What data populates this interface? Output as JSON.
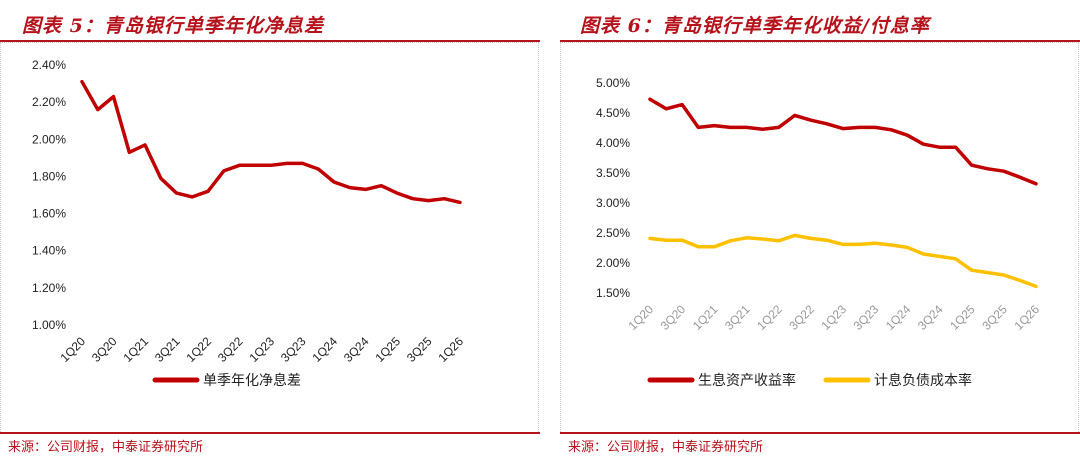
{
  "colors": {
    "brand_red": "#b5121b",
    "series_red": "#c00000",
    "series_yellow": "#ffc000"
  },
  "panel_left": {
    "title": "图表 5：青岛银行单季年化净息差",
    "source": "来源：公司财报，中泰证券研究所"
  },
  "panel_right": {
    "title": "图表 6：青岛银行单季年化收益/付息率",
    "source": "来源：公司财报，中泰证券研究所"
  },
  "chart_data": [
    {
      "type": "line",
      "y_format": "percent",
      "categories": [
        "1Q20",
        "2Q20",
        "3Q20",
        "4Q20",
        "1Q21",
        "2Q21",
        "3Q21",
        "4Q21",
        "1Q22",
        "2Q22",
        "3Q22",
        "4Q22",
        "1Q23",
        "2Q23",
        "3Q23",
        "4Q23",
        "1Q24",
        "2Q24",
        "3Q24",
        "4Q24",
        "1Q25",
        "2Q25",
        "3Q25",
        "4Q25",
        "1Q26"
      ],
      "x_tick_labels": [
        "1Q20",
        "3Q20",
        "1Q21",
        "3Q21",
        "1Q22",
        "3Q22",
        "1Q23",
        "3Q23",
        "1Q24",
        "3Q24",
        "1Q25",
        "3Q25",
        "1Q26"
      ],
      "y_ticks": [
        "2.40%",
        "2.20%",
        "2.00%",
        "1.80%",
        "1.60%",
        "1.40%",
        "1.20%",
        "1.00%"
      ],
      "ylim": [
        1.0,
        2.4
      ],
      "legend_position": "bottom",
      "series": [
        {
          "name": "单季年化净息差",
          "color": "#c00000",
          "values": [
            2.31,
            2.16,
            2.23,
            1.93,
            1.97,
            1.79,
            1.71,
            1.69,
            1.72,
            1.83,
            1.86,
            1.86,
            1.86,
            1.87,
            1.87,
            1.84,
            1.77,
            1.74,
            1.73,
            1.75,
            1.71,
            1.68,
            1.67,
            1.68,
            1.66
          ]
        }
      ]
    },
    {
      "type": "line",
      "y_format": "percent",
      "categories": [
        "1Q20",
        "2Q20",
        "3Q20",
        "4Q20",
        "1Q21",
        "2Q21",
        "3Q21",
        "4Q21",
        "1Q22",
        "2Q22",
        "3Q22",
        "4Q22",
        "1Q23",
        "2Q23",
        "3Q23",
        "4Q23",
        "1Q24",
        "2Q24",
        "3Q24",
        "4Q24",
        "1Q25",
        "2Q25",
        "3Q25",
        "4Q25",
        "1Q26"
      ],
      "x_tick_labels": [
        "1Q20",
        "3Q20",
        "1Q21",
        "3Q21",
        "1Q22",
        "3Q22",
        "1Q23",
        "3Q23",
        "1Q24",
        "3Q24",
        "1Q25",
        "3Q25",
        "1Q26"
      ],
      "y_ticks": [
        "5.00%",
        "4.50%",
        "4.00%",
        "3.50%",
        "3.00%",
        "2.50%",
        "2.00%",
        "1.50%"
      ],
      "ylim": [
        1.5,
        5.0
      ],
      "legend_position": "bottom",
      "series": [
        {
          "name": "生息资产收益率",
          "color": "#c00000",
          "values": [
            4.73,
            4.57,
            4.64,
            4.26,
            4.29,
            4.26,
            4.26,
            4.23,
            4.26,
            4.46,
            4.38,
            4.32,
            4.24,
            4.26,
            4.26,
            4.22,
            4.13,
            3.98,
            3.93,
            3.93,
            3.63,
            3.57,
            3.53,
            3.43,
            3.32
          ]
        },
        {
          "name": "计息负债成本率",
          "color": "#ffc000",
          "values": [
            2.41,
            2.38,
            2.38,
            2.27,
            2.27,
            2.37,
            2.42,
            2.4,
            2.37,
            2.46,
            2.41,
            2.38,
            2.31,
            2.31,
            2.33,
            2.3,
            2.26,
            2.15,
            2.11,
            2.07,
            1.88,
            1.84,
            1.8,
            1.71,
            1.61
          ]
        }
      ]
    }
  ]
}
